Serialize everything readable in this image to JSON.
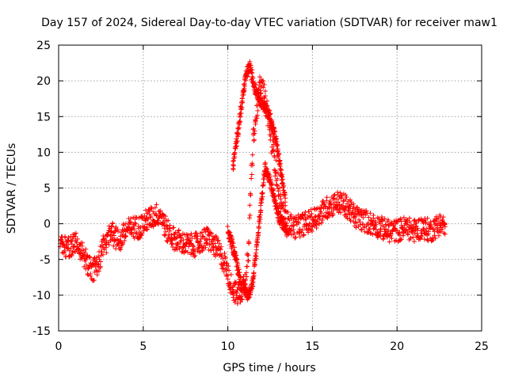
{
  "chart_data": {
    "type": "scatter",
    "title": "Day 157 of 2024, Sidereal Day-to-day VTEC variation (SDTVAR) for receiver maw1",
    "xlabel": "GPS time / hours",
    "ylabel": "SDTVAR / TECUs",
    "xlim": [
      0,
      25
    ],
    "ylim": [
      -15,
      25
    ],
    "x_ticks": [
      "0",
      "5",
      "10",
      "15",
      "20",
      "25"
    ],
    "y_ticks": [
      "-15",
      "-10",
      "-5",
      "0",
      "5",
      "10",
      "15",
      "20",
      "25"
    ],
    "grid": true,
    "marker": "+",
    "color": "#ff0000",
    "series": [
      {
        "name": "SDTVAR maw1",
        "trace_x": [
          0.1,
          0.3,
          0.6,
          1.0,
          1.4,
          1.7,
          2.0,
          2.3,
          2.6,
          2.9,
          3.2,
          3.6,
          4.0,
          4.4,
          4.8,
          5.2,
          5.6,
          6.0,
          6.4,
          6.8,
          7.2,
          7.6,
          8.0,
          8.4,
          8.8,
          9.2,
          9.5,
          9.8,
          10.0,
          10.2,
          10.4,
          10.6,
          10.8,
          11.0,
          11.2,
          11.35,
          11.5,
          11.7,
          11.9,
          12.1,
          12.3,
          12.5,
          12.7,
          12.9,
          13.1,
          13.3,
          13.6,
          14.0,
          14.5,
          15.0,
          15.5,
          16.0,
          16.5,
          17.0,
          17.5,
          18.0,
          18.5,
          19.0,
          19.5,
          20.0,
          20.5,
          21.0,
          21.5,
          22.0,
          22.5,
          22.9
        ],
        "trace_y": [
          -2.0,
          -3.0,
          -3.5,
          -2.5,
          -4.0,
          -5.5,
          -6.5,
          -6.0,
          -3.5,
          -2.0,
          -1.5,
          -2.5,
          -1.0,
          -0.5,
          -0.5,
          0.5,
          1.0,
          1.5,
          -1.0,
          -2.0,
          -2.5,
          -3.0,
          -3.0,
          -2.5,
          -2.0,
          -3.0,
          -4.0,
          -5.5,
          -7.0,
          -8.5,
          -9.5,
          -10.0,
          -9.5,
          -8.0,
          -4.0,
          4.0,
          12.0,
          16.0,
          19.0,
          18.5,
          16.0,
          13.0,
          10.0,
          6.5,
          3.0,
          1.0,
          0.0,
          -0.5,
          0.0,
          0.5,
          1.5,
          2.5,
          3.0,
          2.5,
          1.0,
          0.5,
          0.0,
          -0.5,
          -1.0,
          -1.0,
          -0.5,
          -1.0,
          -0.5,
          -1.0,
          0.0,
          -0.5
        ],
        "upper_branch_x": [
          10.3,
          10.6,
          10.9,
          11.1,
          11.3,
          11.6,
          12.0,
          12.5,
          12.9,
          13.4
        ],
        "upper_branch_y": [
          8.0,
          13.0,
          18.0,
          21.0,
          22.0,
          19.0,
          17.0,
          15.0,
          11.0,
          3.0
        ],
        "lower_branch_x": [
          10.0,
          10.4,
          10.8,
          11.2,
          11.5,
          11.8,
          12.2,
          12.6,
          13.0,
          13.5
        ],
        "lower_branch_y": [
          -1.0,
          -4.0,
          -8.5,
          -10.0,
          -8.0,
          -1.0,
          8.0,
          5.0,
          1.0,
          -1.0
        ]
      }
    ]
  }
}
